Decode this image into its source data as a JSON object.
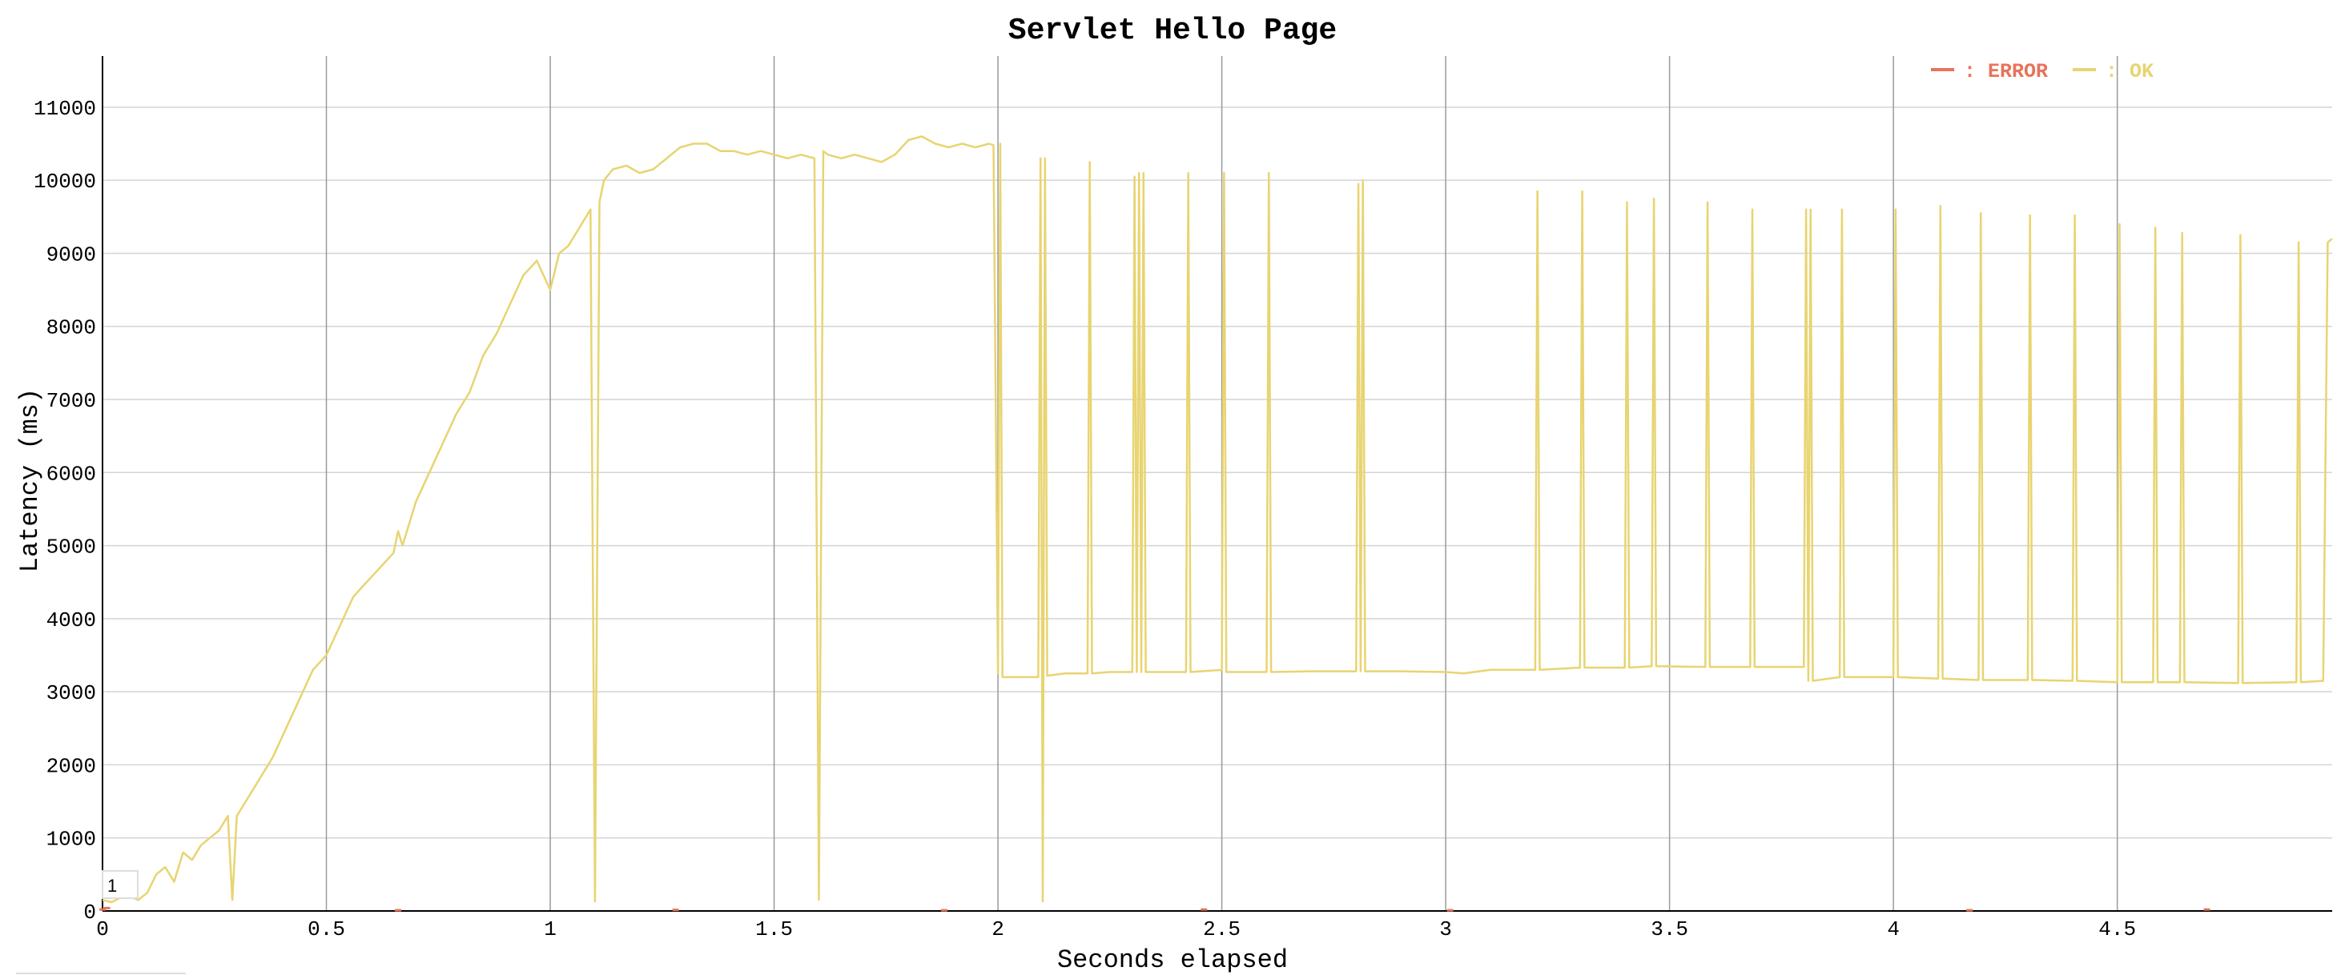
{
  "chart_data": {
    "type": "line",
    "title": "Servlet Hello Page",
    "xlabel": "Seconds elapsed",
    "ylabel": "Latency (ms)",
    "xlim": [
      0,
      4.98
    ],
    "ylim": [
      0,
      11700
    ],
    "x_ticks": [
      0,
      0.5,
      1,
      1.5,
      2,
      2.5,
      3,
      3.5,
      4,
      4.5
    ],
    "x_tick_labels": [
      "0",
      "0.5",
      "1",
      "1.5",
      "2",
      "2.5",
      "3",
      "3.5",
      "4",
      "4.5"
    ],
    "y_ticks": [
      0,
      1000,
      2000,
      3000,
      4000,
      5000,
      6000,
      7000,
      8000,
      9000,
      10000,
      11000
    ],
    "y_tick_labels": [
      "0",
      "1000",
      "2000",
      "3000",
      "4000",
      "5000",
      "6000",
      "7000",
      "8000",
      "9000",
      "10000",
      "11000"
    ],
    "grid": true,
    "legend_position": "top-right",
    "marker_label": "1",
    "series": [
      {
        "name": "ERROR",
        "legend_label": ": ERROR",
        "color": "#e8735a",
        "x": [
          0.0,
          0.01,
          0.66,
          1.28,
          1.88,
          2.46,
          3.01,
          4.17,
          4.7
        ],
        "y": [
          20,
          40,
          10,
          15,
          10,
          20,
          10,
          10,
          20
        ]
      },
      {
        "name": "OK",
        "legend_label": ": OK",
        "color": "#e8d471",
        "x": [
          0.0,
          0.02,
          0.04,
          0.06,
          0.08,
          0.1,
          0.12,
          0.14,
          0.16,
          0.18,
          0.2,
          0.22,
          0.24,
          0.26,
          0.28,
          0.29,
          0.3,
          0.32,
          0.35,
          0.38,
          0.41,
          0.44,
          0.47,
          0.5,
          0.53,
          0.56,
          0.59,
          0.62,
          0.65,
          0.66,
          0.67,
          0.7,
          0.73,
          0.76,
          0.79,
          0.82,
          0.85,
          0.88,
          0.91,
          0.94,
          0.97,
          1.0,
          1.02,
          1.04,
          1.06,
          1.08,
          1.09,
          1.1,
          1.11,
          1.12,
          1.14,
          1.17,
          1.2,
          1.23,
          1.26,
          1.29,
          1.32,
          1.35,
          1.38,
          1.41,
          1.44,
          1.47,
          1.5,
          1.53,
          1.56,
          1.59,
          1.6,
          1.61,
          1.62,
          1.65,
          1.68,
          1.71,
          1.74,
          1.77,
          1.8,
          1.83,
          1.86,
          1.89,
          1.92,
          1.95,
          1.98,
          1.99,
          2.0,
          2.005,
          2.01,
          2.05,
          2.09,
          2.095,
          2.1,
          2.105,
          2.11,
          2.15,
          2.2,
          2.205,
          2.21,
          2.25,
          2.3,
          2.305,
          2.31,
          2.315,
          2.32,
          2.325,
          2.33,
          2.4,
          2.42,
          2.425,
          2.43,
          2.5,
          2.505,
          2.51,
          2.6,
          2.605,
          2.61,
          2.7,
          2.8,
          2.805,
          2.81,
          2.815,
          2.82,
          2.9,
          3.0,
          3.04,
          3.1,
          3.2,
          3.205,
          3.21,
          3.3,
          3.305,
          3.31,
          3.4,
          3.405,
          3.41,
          3.46,
          3.465,
          3.47,
          3.58,
          3.585,
          3.59,
          3.68,
          3.685,
          3.69,
          3.8,
          3.805,
          3.81,
          3.815,
          3.82,
          3.88,
          3.885,
          3.89,
          4.0,
          4.005,
          4.01,
          4.1,
          4.105,
          4.11,
          4.19,
          4.195,
          4.2,
          4.3,
          4.305,
          4.31,
          4.4,
          4.405,
          4.41,
          4.5,
          4.505,
          4.51,
          4.58,
          4.585,
          4.59,
          4.64,
          4.645,
          4.65,
          4.77,
          4.775,
          4.78,
          4.9,
          4.905,
          4.91,
          4.96,
          4.97,
          4.98
        ],
        "y": [
          150,
          120,
          180,
          200,
          150,
          250,
          500,
          600,
          400,
          800,
          700,
          900,
          1000,
          1100,
          1300,
          150,
          1300,
          1500,
          1800,
          2100,
          2500,
          2900,
          3300,
          3500,
          3900,
          4300,
          4500,
          4700,
          4900,
          5200,
          5000,
          5600,
          6000,
          6400,
          6800,
          7100,
          7600,
          7900,
          8300,
          8700,
          8900,
          8500,
          9000,
          9100,
          9300,
          9500,
          9600,
          130,
          9700,
          10000,
          10150,
          10200,
          10100,
          10150,
          10300,
          10450,
          10500,
          10500,
          10400,
          10400,
          10350,
          10400,
          10350,
          10300,
          10350,
          10300,
          150,
          10400,
          10350,
          10300,
          10350,
          10300,
          10250,
          10350,
          10550,
          10600,
          10500,
          10450,
          10500,
          10450,
          10500,
          10480,
          3250,
          10500,
          3200,
          3200,
          3200,
          10300,
          130,
          10300,
          3220,
          3250,
          3250,
          10250,
          3250,
          3270,
          3270,
          10050,
          3270,
          10100,
          3270,
          10100,
          3270,
          3270,
          3270,
          10100,
          3270,
          3300,
          10100,
          3270,
          3270,
          10100,
          3270,
          3280,
          3280,
          9950,
          3280,
          10000,
          3280,
          3280,
          3270,
          3250,
          3300,
          3300,
          9850,
          3300,
          3330,
          9850,
          3330,
          3330,
          9700,
          3330,
          3350,
          9750,
          3350,
          3340,
          9700,
          3340,
          3340,
          9600,
          3340,
          3340,
          9600,
          3150,
          9600,
          3150,
          3200,
          9600,
          3200,
          3200,
          9600,
          3200,
          3180,
          9650,
          3180,
          3160,
          9550,
          3160,
          3160,
          9520,
          3160,
          3150,
          9520,
          3150,
          3130,
          9400,
          3130,
          3130,
          9350,
          3130,
          3130,
          9280,
          3130,
          3120,
          9250,
          3120,
          3130,
          9150,
          3130,
          3150,
          9150,
          9200
        ]
      }
    ]
  }
}
